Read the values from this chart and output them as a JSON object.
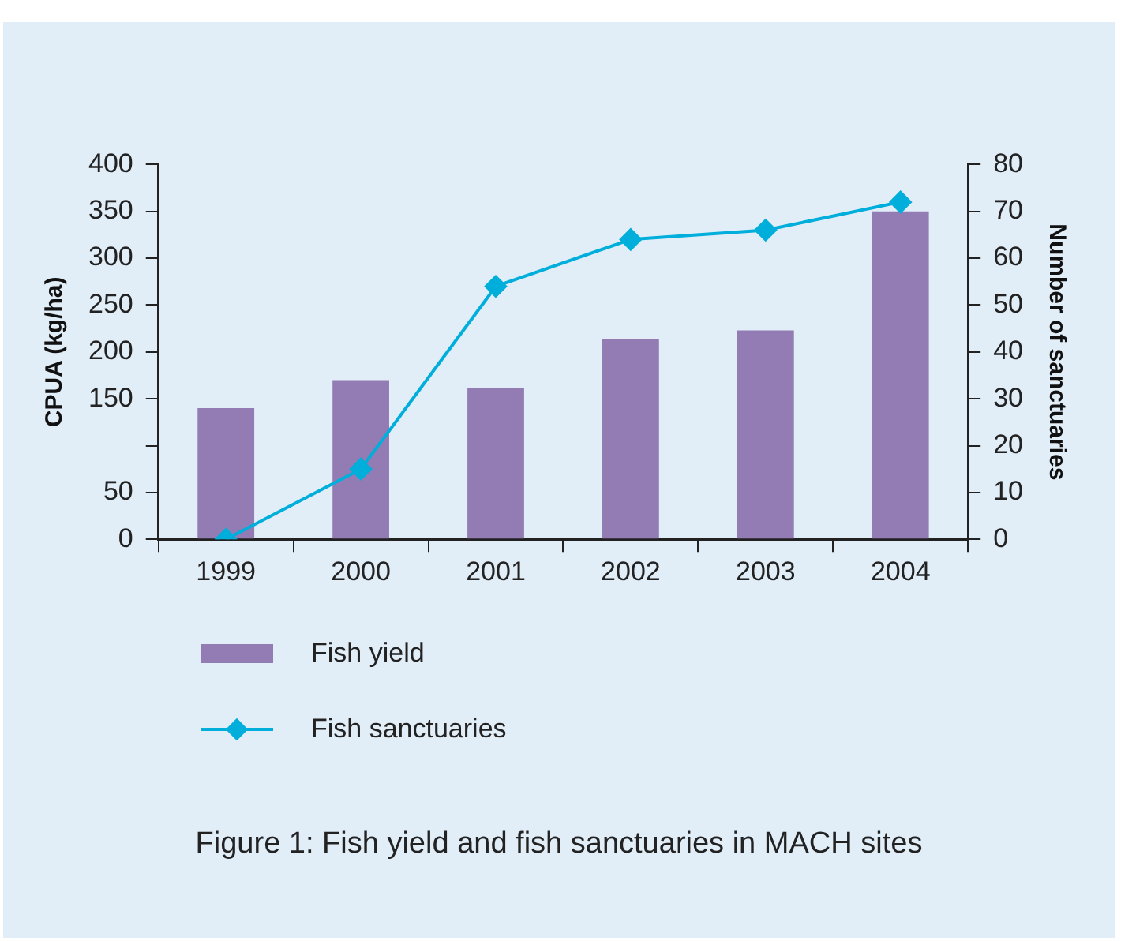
{
  "chart_data": {
    "type": "bar",
    "ylabel": "CPUA (kg/ha)",
    "y2label": "Number of sanctuaries",
    "categories": [
      "1999",
      "2000",
      "2001",
      "2002",
      "2003",
      "2004"
    ],
    "series": [
      {
        "name": "Fish yield",
        "color": "#937cb3",
        "values": [
          140,
          170,
          161,
          214,
          223,
          350
        ]
      },
      {
        "name": "Fish sanctuaries",
        "type": "line",
        "axis": "y2",
        "color": "#00aedb",
        "marker": "diamond",
        "values": [
          0,
          15,
          54,
          64,
          66,
          72
        ]
      }
    ],
    "ylim": [
      0,
      400
    ],
    "yticks": [
      0,
      50,
      {
        "value": 100,
        "label": null
      },
      150,
      200,
      250,
      300,
      350,
      400
    ],
    "y2lim": [
      0,
      80
    ],
    "y2ticks": [
      0,
      10,
      20,
      30,
      40,
      50,
      60,
      70,
      80
    ],
    "grid": false,
    "legend": "bottom",
    "annotations": [
      "Figure 1: Fish yield and fish sanctuaries in MACH sites"
    ]
  }
}
